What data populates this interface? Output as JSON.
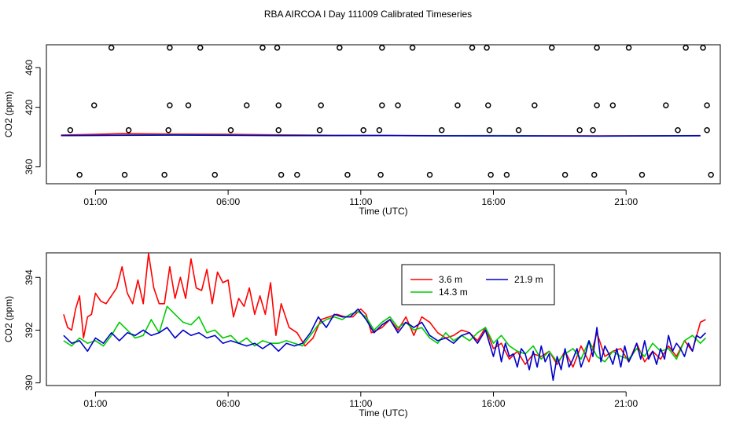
{
  "figure": {
    "title": "RBA AIRCOA I  Day 111009  Calibrated Timeseries"
  },
  "chart_data": [
    {
      "type": "scatter",
      "name": "top-panel",
      "xlabel": "Time (UTC)",
      "ylabel": "CO2 (ppm)",
      "xlim": [
        -0.85,
        24.55
      ],
      "ylim": [
        343,
        483
      ],
      "xticks": [
        1,
        6,
        11,
        16,
        21
      ],
      "xtick_labels": [
        "01:00",
        "06:00",
        "11:00",
        "16:00",
        "21:00"
      ],
      "yticks": [
        360,
        420,
        460
      ],
      "ytick_labels": [
        "360",
        "420",
        "460"
      ],
      "reference_points": {
        "x": [
          0.4,
          2.1,
          3.6,
          5.5,
          8.0,
          8.6,
          10.5,
          11.75,
          13.6,
          15.9,
          16.5,
          18.7,
          19.8,
          21.6,
          24.2,
          0.05,
          2.25,
          3.75,
          6.1,
          7.9,
          9.45,
          11.1,
          11.7,
          14.05,
          15.85,
          16.95,
          19.25,
          19.75,
          22.95,
          24.05,
          0.95,
          3.8,
          4.5,
          6.7,
          7.9,
          9.5,
          11.8,
          12.4,
          14.65,
          15.8,
          17.55,
          19.9,
          20.5,
          22.5,
          24.05,
          1.6,
          3.8,
          4.95,
          7.3,
          7.85,
          10.2,
          11.8,
          12.95,
          15.2,
          15.75,
          18.2,
          19.9,
          21.1,
          23.25,
          23.9
        ],
        "y": [
          352,
          352,
          352,
          352,
          352,
          352,
          352,
          352,
          352,
          352,
          352,
          352,
          352,
          352,
          352,
          397,
          397,
          397,
          397,
          397,
          397,
          397,
          397,
          397,
          397,
          397,
          397,
          397,
          397,
          397,
          422,
          422,
          422,
          422,
          422,
          422,
          422,
          422,
          422,
          422,
          422,
          422,
          422,
          422,
          422,
          480,
          480,
          480,
          480,
          480,
          480,
          480,
          480,
          480,
          480,
          480,
          480,
          480,
          480,
          480
        ]
      },
      "series": [
        {
          "name": "3.6 m",
          "color": "#ff0000",
          "x": [
            -0.3,
            2,
            4,
            6,
            8,
            10,
            12,
            14,
            16,
            18,
            20,
            22,
            23.8
          ],
          "values": [
            392,
            393.5,
            393,
            392.8,
            392.2,
            391.8,
            391.6,
            391.4,
            391.5,
            391.3,
            391.2,
            391.3,
            391.5
          ]
        },
        {
          "name": "14.3 m",
          "color": "#00cc00",
          "x": [
            -0.3,
            2,
            4,
            6,
            8,
            10,
            12,
            14,
            16,
            18,
            20,
            22,
            23.8
          ],
          "values": [
            391.5,
            392,
            392.3,
            392,
            391.7,
            391.6,
            391.5,
            391.4,
            391.4,
            391.2,
            391,
            391.2,
            391.3
          ]
        },
        {
          "name": "21.9 m",
          "color": "#0000cc",
          "x": [
            -0.3,
            2,
            4,
            6,
            8,
            10,
            12,
            14,
            16,
            18,
            20,
            22,
            23.8
          ],
          "values": [
            391.5,
            391.8,
            392,
            391.8,
            391.5,
            391.5,
            391.6,
            391.3,
            391.2,
            391.1,
            391,
            391.2,
            391.4
          ]
        }
      ]
    },
    {
      "type": "line",
      "name": "bottom-panel",
      "xlabel": "Time (UTC)",
      "ylabel": "CO2 (ppm)",
      "xlim": [
        -0.85,
        24.55
      ],
      "ylim": [
        389.9,
        394.93
      ],
      "xticks": [
        1,
        6,
        11,
        16,
        21
      ],
      "xtick_labels": [
        "01:00",
        "06:00",
        "11:00",
        "16:00",
        "21:00"
      ],
      "yticks": [
        390,
        392,
        394
      ],
      "ytick_labels": [
        "390",
        "392",
        "394"
      ],
      "legend": {
        "position": "top-center",
        "entries": [
          {
            "label": "3.6 m",
            "color": "#ff0000"
          },
          {
            "label": "21.9 m",
            "color": "#0000cc"
          },
          {
            "label": "14.3 m",
            "color": "#00cc00"
          }
        ]
      },
      "series": [
        {
          "name": "3.6 m",
          "color": "#ff0000",
          "x": [
            -0.2,
            -0.05,
            0.1,
            0.25,
            0.4,
            0.55,
            0.7,
            0.85,
            1.0,
            1.2,
            1.4,
            1.6,
            1.8,
            2.0,
            2.2,
            2.4,
            2.6,
            2.8,
            3.0,
            3.2,
            3.4,
            3.6,
            3.8,
            4.0,
            4.2,
            4.4,
            4.6,
            4.8,
            5.0,
            5.2,
            5.4,
            5.6,
            5.8,
            6.0,
            6.2,
            6.4,
            6.6,
            6.8,
            7.0,
            7.2,
            7.4,
            7.6,
            7.8,
            8.0,
            8.3,
            8.6,
            8.9,
            9.2,
            9.5,
            9.8,
            10.1,
            10.4,
            10.7,
            11.0,
            11.2,
            11.4,
            11.6,
            11.8,
            12.1,
            12.4,
            12.7,
            13.0,
            13.3,
            13.6,
            13.9,
            14.2,
            14.5,
            14.8,
            15.1,
            15.4,
            15.7,
            16.0,
            16.3,
            16.6,
            16.9,
            17.2,
            17.5,
            17.8,
            18.1,
            18.4,
            18.7,
            19.0,
            19.3,
            19.6,
            19.9,
            20.2,
            20.5,
            20.8,
            21.1,
            21.4,
            21.7,
            22.0,
            22.3,
            22.6,
            22.9,
            23.2,
            23.5,
            23.8,
            24.0
          ],
          "values": [
            392.6,
            392.1,
            392.0,
            392.8,
            393.3,
            391.7,
            392.5,
            392.6,
            393.4,
            393.1,
            393.0,
            393.3,
            393.6,
            394.4,
            393.4,
            393.0,
            393.9,
            393.0,
            394.9,
            393.6,
            393.0,
            393.0,
            394.4,
            393.2,
            394.0,
            393.2,
            394.7,
            393.6,
            393.5,
            394.3,
            393.0,
            394.2,
            393.8,
            393.9,
            392.5,
            393.2,
            392.9,
            393.6,
            392.6,
            393.3,
            392.6,
            393.8,
            391.8,
            393.0,
            392.1,
            391.9,
            391.4,
            391.7,
            392.4,
            392.5,
            392.6,
            392.5,
            392.5,
            392.8,
            392.6,
            391.9,
            392.0,
            392.1,
            392.4,
            392.0,
            392.5,
            391.8,
            392.5,
            392.3,
            391.9,
            391.7,
            391.8,
            392.0,
            391.9,
            391.6,
            392.1,
            391.3,
            391.5,
            390.9,
            391.2,
            390.7,
            391.1,
            391.0,
            391.2,
            390.7,
            391.2,
            390.6,
            391.4,
            390.8,
            391.9,
            391.0,
            391.2,
            391.3,
            390.8,
            391.5,
            390.8,
            391.2,
            390.9,
            391.4,
            391.0,
            391.6,
            391.2,
            392.3,
            392.4
          ]
        },
        {
          "name": "14.3 m",
          "color": "#00cc00",
          "x": [
            -0.2,
            0.1,
            0.4,
            0.7,
            1.0,
            1.3,
            1.6,
            1.9,
            2.2,
            2.5,
            2.8,
            3.1,
            3.4,
            3.7,
            4.0,
            4.3,
            4.6,
            4.9,
            5.2,
            5.5,
            5.8,
            6.1,
            6.4,
            6.7,
            7.0,
            7.3,
            7.6,
            7.9,
            8.2,
            8.5,
            8.8,
            9.1,
            9.4,
            9.7,
            10.0,
            10.3,
            10.6,
            10.9,
            11.2,
            11.5,
            11.8,
            12.1,
            12.4,
            12.7,
            13.0,
            13.3,
            13.6,
            13.9,
            14.2,
            14.5,
            14.8,
            15.1,
            15.4,
            15.7,
            16.0,
            16.3,
            16.6,
            16.9,
            17.2,
            17.5,
            17.8,
            18.1,
            18.4,
            18.7,
            19.0,
            19.3,
            19.6,
            19.9,
            20.2,
            20.5,
            20.8,
            21.1,
            21.4,
            21.7,
            22.0,
            22.3,
            22.6,
            22.9,
            23.2,
            23.5,
            23.8,
            24.0
          ],
          "values": [
            391.6,
            391.4,
            391.7,
            391.5,
            391.6,
            391.4,
            391.8,
            392.3,
            392.0,
            391.7,
            391.8,
            392.4,
            391.9,
            392.9,
            392.6,
            392.3,
            392.2,
            392.5,
            391.9,
            392.0,
            391.7,
            391.8,
            391.5,
            391.7,
            391.4,
            391.6,
            391.5,
            391.5,
            391.6,
            391.5,
            391.4,
            391.8,
            392.2,
            392.4,
            392.5,
            392.4,
            392.6,
            392.7,
            392.5,
            392.0,
            392.3,
            392.5,
            392.1,
            392.3,
            392.0,
            392.1,
            391.7,
            391.5,
            391.9,
            391.6,
            391.8,
            391.6,
            391.9,
            392.1,
            391.5,
            391.8,
            391.4,
            391.2,
            391.1,
            391.4,
            390.9,
            391.2,
            390.8,
            391.1,
            391.3,
            390.9,
            391.6,
            391.0,
            390.8,
            391.2,
            391.0,
            390.9,
            391.3,
            391.0,
            391.5,
            391.2,
            391.3,
            390.9,
            391.6,
            391.8,
            391.5,
            391.7
          ]
        },
        {
          "name": "21.9 m",
          "color": "#0000cc",
          "x": [
            -0.2,
            0.1,
            0.4,
            0.7,
            1.0,
            1.3,
            1.6,
            1.9,
            2.2,
            2.5,
            2.8,
            3.1,
            3.4,
            3.7,
            4.0,
            4.3,
            4.6,
            4.9,
            5.2,
            5.5,
            5.8,
            6.1,
            6.4,
            6.7,
            7.0,
            7.3,
            7.6,
            7.9,
            8.2,
            8.5,
            8.8,
            9.1,
            9.4,
            9.7,
            10.0,
            10.3,
            10.6,
            10.9,
            11.2,
            11.5,
            11.8,
            12.1,
            12.4,
            12.7,
            13.0,
            13.3,
            13.6,
            13.9,
            14.2,
            14.5,
            14.8,
            15.1,
            15.4,
            15.7,
            16.0,
            16.15,
            16.3,
            16.45,
            16.6,
            16.75,
            16.9,
            17.05,
            17.2,
            17.35,
            17.5,
            17.65,
            17.8,
            17.95,
            18.1,
            18.25,
            18.4,
            18.55,
            18.7,
            18.85,
            19.0,
            19.15,
            19.3,
            19.45,
            19.6,
            19.75,
            19.9,
            20.05,
            20.2,
            20.35,
            20.5,
            20.65,
            20.8,
            20.95,
            21.1,
            21.25,
            21.4,
            21.55,
            21.7,
            21.85,
            22.0,
            22.15,
            22.3,
            22.45,
            22.6,
            22.75,
            22.9,
            23.05,
            23.2,
            23.35,
            23.5,
            23.65,
            23.8,
            24.0
          ],
          "values": [
            391.8,
            391.5,
            391.6,
            391.2,
            391.7,
            391.5,
            391.9,
            391.6,
            391.9,
            391.8,
            392.0,
            391.8,
            391.9,
            392.1,
            391.7,
            392.0,
            391.8,
            391.9,
            391.7,
            391.8,
            391.5,
            391.6,
            391.5,
            391.4,
            391.5,
            391.3,
            391.5,
            391.2,
            391.5,
            391.4,
            391.5,
            391.9,
            392.5,
            392.1,
            392.6,
            392.5,
            392.5,
            392.8,
            392.4,
            391.9,
            392.2,
            392.4,
            391.9,
            392.3,
            392.1,
            392.3,
            391.8,
            391.6,
            391.7,
            391.5,
            391.8,
            391.9,
            391.5,
            392.0,
            391.0,
            391.6,
            390.8,
            391.5,
            391.0,
            391.1,
            390.6,
            391.3,
            391.1,
            390.5,
            391.2,
            390.6,
            391.4,
            390.8,
            391.1,
            390.1,
            391.0,
            390.5,
            391.3,
            390.6,
            390.9,
            391.3,
            390.6,
            391.0,
            391.6,
            391.0,
            392.1,
            390.8,
            391.4,
            391.1,
            390.7,
            391.3,
            390.6,
            391.4,
            390.8,
            391.1,
            391.5,
            390.9,
            391.6,
            390.9,
            391.2,
            390.7,
            391.3,
            390.9,
            391.8,
            391.2,
            391.5,
            391.3,
            391.0,
            391.5,
            391.2,
            391.8,
            391.7,
            391.9
          ]
        }
      ]
    }
  ]
}
